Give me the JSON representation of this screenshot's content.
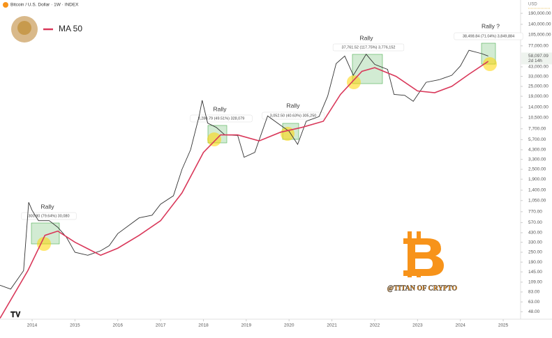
{
  "chart_data": {
    "type": "line",
    "header": "Bitcoin / U.S. Dollar · 1W · INDEX",
    "currency": "USD",
    "log_scale": true,
    "xlim": [
      2013.25,
      2025.39
    ],
    "xticks": [
      2014,
      2015,
      2016,
      2017,
      2018,
      2019,
      2020,
      2021,
      2022,
      2023,
      2024,
      2025
    ],
    "ylim": [
      39,
      275000
    ],
    "yticks": [
      {
        "value": 190000,
        "label": "190,000.00"
      },
      {
        "value": 140000,
        "label": "140,000.00"
      },
      {
        "value": 105000,
        "label": "105,000.00"
      },
      {
        "value": 77000,
        "label": "77,000.00"
      },
      {
        "value": 43000,
        "label": "43,000.00"
      },
      {
        "value": 33000,
        "label": "33,000.00"
      },
      {
        "value": 25000,
        "label": "25,000.00"
      },
      {
        "value": 19000,
        "label": "19,000.00"
      },
      {
        "value": 14000,
        "label": "14,000.00"
      },
      {
        "value": 10500,
        "label": "10,500.00"
      },
      {
        "value": 7700,
        "label": "7,700.00"
      },
      {
        "value": 5700,
        "label": "5,700.00"
      },
      {
        "value": 4300,
        "label": "4,300.00"
      },
      {
        "value": 3300,
        "label": "3,300.00"
      },
      {
        "value": 2500,
        "label": "2,500.00"
      },
      {
        "value": 1900,
        "label": "1,900.00"
      },
      {
        "value": 1400,
        "label": "1,400.00"
      },
      {
        "value": 1050,
        "label": "1,050.00"
      },
      {
        "value": 770,
        "label": "770.00"
      },
      {
        "value": 570,
        "label": "570.00"
      },
      {
        "value": 430,
        "label": "430.00"
      },
      {
        "value": 330,
        "label": "330.00"
      },
      {
        "value": 250,
        "label": "250.00"
      },
      {
        "value": 190,
        "label": "190.00"
      },
      {
        "value": 145,
        "label": "145.00"
      },
      {
        "value": 109,
        "label": "109.00"
      },
      {
        "value": 83,
        "label": "83.00"
      },
      {
        "value": 63,
        "label": "63.00"
      },
      {
        "value": 48,
        "label": "48.00"
      }
    ],
    "last_price": {
      "value": 58097.09,
      "label": "58,097.09"
    },
    "countdown": "2d 14h",
    "series": [
      {
        "name": "BTC",
        "color": "#333333",
        "x": [
          2013.25,
          2013.5,
          2013.8,
          2013.92,
          2014.0,
          2014.15,
          2014.4,
          2014.6,
          2014.8,
          2015.0,
          2015.3,
          2015.6,
          2015.8,
          2016.0,
          2016.5,
          2016.8,
          2017.0,
          2017.3,
          2017.5,
          2017.7,
          2017.9,
          2017.97,
          2018.1,
          2018.3,
          2018.5,
          2018.8,
          2018.95,
          2019.2,
          2019.5,
          2019.8,
          2020.0,
          2020.2,
          2020.4,
          2020.7,
          2020.9,
          2021.1,
          2021.3,
          2021.5,
          2021.8,
          2022.0,
          2022.3,
          2022.45,
          2022.7,
          2022.9,
          2023.2,
          2023.5,
          2023.8,
          2024.0,
          2024.2,
          2024.5,
          2024.65
        ],
        "values": [
          100,
          90,
          150,
          1000,
          800,
          600,
          600,
          500,
          380,
          250,
          230,
          260,
          300,
          420,
          650,
          700,
          950,
          1200,
          2500,
          4300,
          11000,
          17000,
          9000,
          8000,
          6500,
          6400,
          3500,
          4000,
          11000,
          8500,
          7200,
          5000,
          9500,
          10800,
          19000,
          47000,
          58000,
          34000,
          61000,
          46000,
          40000,
          20000,
          19500,
          16500,
          28000,
          30000,
          34000,
          44000,
          68000,
          62000,
          58097.09
        ]
      },
      {
        "name": "MA 50",
        "color": "#d9385a",
        "x": [
          2013.25,
          2013.9,
          2014.3,
          2014.6,
          2015.0,
          2015.6,
          2016.0,
          2016.5,
          2017.0,
          2017.5,
          2018.0,
          2018.4,
          2018.8,
          2019.3,
          2019.8,
          2020.3,
          2020.8,
          2021.2,
          2021.7,
          2022.0,
          2022.5,
          2023.0,
          2023.4,
          2023.8,
          2024.2,
          2024.65
        ],
        "values": [
          40,
          150,
          400,
          450,
          330,
          230,
          280,
          400,
          600,
          1300,
          4000,
          6500,
          6500,
          5500,
          7000,
          8000,
          9500,
          20000,
          38000,
          42000,
          33000,
          22000,
          21000,
          25000,
          35000,
          50000
        ]
      }
    ],
    "annotations": [
      {
        "title": "Rally",
        "measure": "300.80 (79.64%) 30,080"
      },
      {
        "title": "Rally",
        "measure": "3,280.79 (49.51%) 328,079"
      },
      {
        "title": "Rally",
        "measure": "3,052.50 (40.63%) 305,250"
      },
      {
        "title": "Rally",
        "measure": "37,761.52 (117.75%) 3,776,152"
      },
      {
        "title": "Rally ?",
        "measure": "38,498.84 (71.04%) 3,849,884"
      }
    ],
    "watermark": "@TITAN OF CRYPTO"
  }
}
